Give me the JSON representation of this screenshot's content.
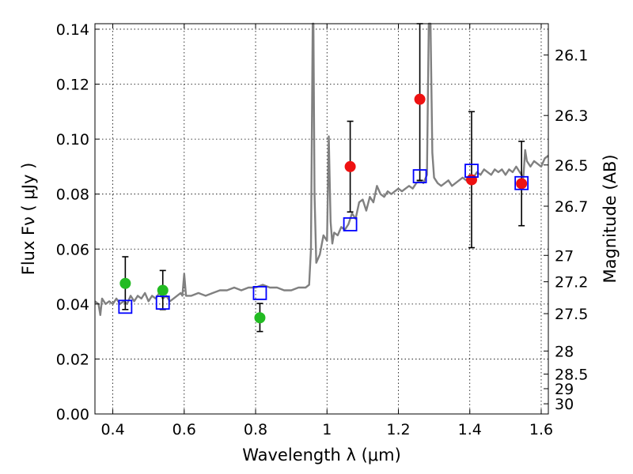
{
  "chart_data": {
    "type": "scatter",
    "xlabel": "Wavelength  λ (μm)",
    "ylabel_left": "Flux  Fν  ( μJy )",
    "ylabel_right": "Magnitude (AB)",
    "xlim": [
      0.35,
      1.62
    ],
    "ylim": [
      0.0,
      0.142
    ],
    "grid": true,
    "x_ticks": [
      {
        "value": 0.4,
        "label": "0.4"
      },
      {
        "value": 0.6,
        "label": "0.6"
      },
      {
        "value": 0.8,
        "label": "0.8"
      },
      {
        "value": 1.0,
        "label": "1"
      },
      {
        "value": 1.2,
        "label": "1.2"
      },
      {
        "value": 1.4,
        "label": "1.4"
      },
      {
        "value": 1.6,
        "label": "1.6"
      }
    ],
    "y_ticks": [
      {
        "value": 0.0,
        "label": "0.00"
      },
      {
        "value": 0.02,
        "label": "0.02"
      },
      {
        "value": 0.04,
        "label": "0.04"
      },
      {
        "value": 0.06,
        "label": "0.06"
      },
      {
        "value": 0.08,
        "label": "0.08"
      },
      {
        "value": 0.1,
        "label": "0.10"
      },
      {
        "value": 0.12,
        "label": "0.12"
      },
      {
        "value": 0.14,
        "label": "0.14"
      }
    ],
    "right_ticks": [
      {
        "flux": 0.1306,
        "label": "26.1"
      },
      {
        "flux": 0.1086,
        "label": "26.3"
      },
      {
        "flux": 0.0906,
        "label": "26.5"
      },
      {
        "flux": 0.0756,
        "label": "26.7"
      },
      {
        "flux": 0.0577,
        "label": "27"
      },
      {
        "flux": 0.0481,
        "label": "27.2"
      },
      {
        "flux": 0.0365,
        "label": "27.5"
      },
      {
        "flux": 0.0229,
        "label": "28"
      },
      {
        "flux": 0.0145,
        "label": "28.5"
      },
      {
        "flux": 0.0092,
        "label": "29"
      },
      {
        "flux": 0.0037,
        "label": "30"
      }
    ],
    "series": [
      {
        "kind": "line",
        "color": "#808080",
        "points": [
          [
            0.35,
            0.041
          ],
          [
            0.36,
            0.04
          ],
          [
            0.365,
            0.036
          ],
          [
            0.37,
            0.042
          ],
          [
            0.38,
            0.04
          ],
          [
            0.39,
            0.041
          ],
          [
            0.4,
            0.04
          ],
          [
            0.41,
            0.042
          ],
          [
            0.42,
            0.04
          ],
          [
            0.43,
            0.041
          ],
          [
            0.44,
            0.04
          ],
          [
            0.45,
            0.043
          ],
          [
            0.46,
            0.041
          ],
          [
            0.47,
            0.043
          ],
          [
            0.48,
            0.042
          ],
          [
            0.49,
            0.044
          ],
          [
            0.5,
            0.041
          ],
          [
            0.51,
            0.043
          ],
          [
            0.52,
            0.042
          ],
          [
            0.53,
            0.044
          ],
          [
            0.54,
            0.042
          ],
          [
            0.55,
            0.043
          ],
          [
            0.56,
            0.041
          ],
          [
            0.57,
            0.042
          ],
          [
            0.58,
            0.043
          ],
          [
            0.59,
            0.044
          ],
          [
            0.595,
            0.043
          ],
          [
            0.6,
            0.051
          ],
          [
            0.605,
            0.043
          ],
          [
            0.62,
            0.043
          ],
          [
            0.64,
            0.044
          ],
          [
            0.66,
            0.043
          ],
          [
            0.68,
            0.044
          ],
          [
            0.7,
            0.045
          ],
          [
            0.72,
            0.045
          ],
          [
            0.74,
            0.046
          ],
          [
            0.76,
            0.045
          ],
          [
            0.78,
            0.046
          ],
          [
            0.8,
            0.046
          ],
          [
            0.82,
            0.047
          ],
          [
            0.84,
            0.046
          ],
          [
            0.86,
            0.046
          ],
          [
            0.88,
            0.045
          ],
          [
            0.9,
            0.045
          ],
          [
            0.92,
            0.046
          ],
          [
            0.94,
            0.046
          ],
          [
            0.95,
            0.047
          ],
          [
            0.955,
            0.06
          ],
          [
            0.96,
            0.142
          ],
          [
            0.962,
            0.142
          ],
          [
            0.965,
            0.08
          ],
          [
            0.97,
            0.055
          ],
          [
            0.98,
            0.058
          ],
          [
            0.99,
            0.065
          ],
          [
            1.0,
            0.063
          ],
          [
            1.005,
            0.101
          ],
          [
            1.01,
            0.07
          ],
          [
            1.015,
            0.062
          ],
          [
            1.02,
            0.066
          ],
          [
            1.03,
            0.065
          ],
          [
            1.04,
            0.068
          ],
          [
            1.05,
            0.067
          ],
          [
            1.06,
            0.069
          ],
          [
            1.07,
            0.073
          ],
          [
            1.08,
            0.071
          ],
          [
            1.09,
            0.077
          ],
          [
            1.1,
            0.078
          ],
          [
            1.11,
            0.074
          ],
          [
            1.12,
            0.079
          ],
          [
            1.13,
            0.077
          ],
          [
            1.14,
            0.083
          ],
          [
            1.15,
            0.08
          ],
          [
            1.16,
            0.079
          ],
          [
            1.17,
            0.081
          ],
          [
            1.18,
            0.08
          ],
          [
            1.19,
            0.081
          ],
          [
            1.2,
            0.082
          ],
          [
            1.21,
            0.081
          ],
          [
            1.22,
            0.082
          ],
          [
            1.23,
            0.083
          ],
          [
            1.24,
            0.082
          ],
          [
            1.25,
            0.084
          ],
          [
            1.26,
            0.085
          ],
          [
            1.27,
            0.084
          ],
          [
            1.28,
            0.087
          ],
          [
            1.285,
            0.142
          ],
          [
            1.29,
            0.142
          ],
          [
            1.295,
            0.095
          ],
          [
            1.3,
            0.086
          ],
          [
            1.31,
            0.084
          ],
          [
            1.32,
            0.083
          ],
          [
            1.33,
            0.084
          ],
          [
            1.34,
            0.085
          ],
          [
            1.35,
            0.083
          ],
          [
            1.36,
            0.084
          ],
          [
            1.37,
            0.085
          ],
          [
            1.38,
            0.086
          ],
          [
            1.39,
            0.085
          ],
          [
            1.4,
            0.087
          ],
          [
            1.41,
            0.086
          ],
          [
            1.42,
            0.088
          ],
          [
            1.43,
            0.087
          ],
          [
            1.44,
            0.089
          ],
          [
            1.45,
            0.088
          ],
          [
            1.46,
            0.087
          ],
          [
            1.47,
            0.089
          ],
          [
            1.48,
            0.088
          ],
          [
            1.49,
            0.089
          ],
          [
            1.5,
            0.087
          ],
          [
            1.51,
            0.089
          ],
          [
            1.52,
            0.088
          ],
          [
            1.53,
            0.09
          ],
          [
            1.54,
            0.088
          ],
          [
            1.55,
            0.086
          ],
          [
            1.555,
            0.096
          ],
          [
            1.56,
            0.092
          ],
          [
            1.57,
            0.09
          ],
          [
            1.58,
            0.092
          ],
          [
            1.59,
            0.091
          ],
          [
            1.6,
            0.09
          ],
          [
            1.61,
            0.093
          ],
          [
            1.62,
            0.094
          ]
        ]
      },
      {
        "kind": "points",
        "marker": "circle",
        "color": "#22bb22",
        "points": [
          {
            "x": 0.435,
            "y": 0.0475,
            "err_low": 0.038,
            "err_high": 0.0572
          },
          {
            "x": 0.54,
            "y": 0.045,
            "err_low": 0.038,
            "err_high": 0.0522
          },
          {
            "x": 0.812,
            "y": 0.035,
            "err_low": 0.03,
            "err_high": 0.0402
          }
        ]
      },
      {
        "kind": "points",
        "marker": "circle",
        "color": "#ee1111",
        "points": [
          {
            "x": 1.065,
            "y": 0.09,
            "err_low": 0.0735,
            "err_high": 0.1065
          },
          {
            "x": 1.26,
            "y": 0.1145,
            "err_low": 0.085,
            "err_high": 0.142
          },
          {
            "x": 1.405,
            "y": 0.0852,
            "err_low": 0.0605,
            "err_high": 0.11
          },
          {
            "x": 1.545,
            "y": 0.0838,
            "err_low": 0.0685,
            "err_high": 0.0992
          }
        ]
      },
      {
        "kind": "points",
        "marker": "open-square",
        "color": "#0000ff",
        "points": [
          {
            "x": 0.435,
            "y": 0.039
          },
          {
            "x": 0.54,
            "y": 0.0405
          },
          {
            "x": 0.812,
            "y": 0.044
          },
          {
            "x": 1.065,
            "y": 0.069
          },
          {
            "x": 1.26,
            "y": 0.0865
          },
          {
            "x": 1.405,
            "y": 0.0885
          },
          {
            "x": 1.545,
            "y": 0.084
          }
        ]
      }
    ]
  }
}
